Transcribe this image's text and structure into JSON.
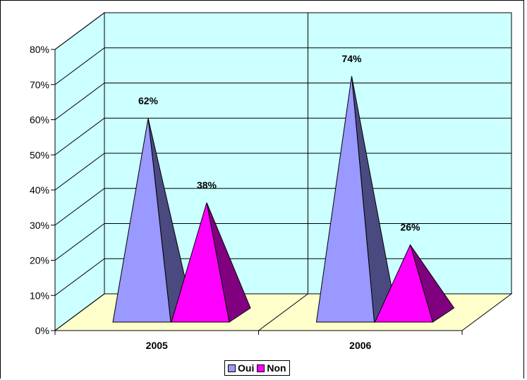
{
  "chart_data": {
    "type": "bar",
    "subtype": "3d-pyramid",
    "categories": [
      "2005",
      "2006"
    ],
    "series": [
      {
        "name": "Oui",
        "values": [
          62,
          74
        ],
        "labels": [
          "62%",
          "74%"
        ]
      },
      {
        "name": "Non",
        "values": [
          38,
          26
        ],
        "labels": [
          "38%",
          "26%"
        ]
      }
    ],
    "ylim": [
      0,
      80
    ],
    "yticks": [
      "0%",
      "10%",
      "20%",
      "30%",
      "40%",
      "50%",
      "60%",
      "70%",
      "80%"
    ],
    "grid": true,
    "legend_position": "bottom"
  },
  "colors": {
    "wall": "#CCFFFF",
    "floor": "#FFFFCC",
    "oui_front": "#9999FF",
    "oui_side": "#4A4A80",
    "non_front": "#FF00FF",
    "non_side": "#800080"
  },
  "legend": {
    "items": [
      "Oui",
      "Non"
    ]
  }
}
